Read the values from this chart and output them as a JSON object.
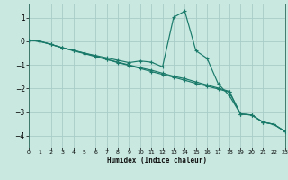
{
  "xlabel": "Humidex (Indice chaleur)",
  "background_color": "#c8e8e0",
  "grid_color": "#a8ccc8",
  "line_color": "#1a7a6a",
  "xlim": [
    0,
    23
  ],
  "ylim": [
    -4.5,
    1.6
  ],
  "yticks": [
    -4,
    -3,
    -2,
    -1,
    0,
    1
  ],
  "xticks": [
    0,
    1,
    2,
    3,
    4,
    5,
    6,
    7,
    8,
    9,
    10,
    11,
    12,
    13,
    14,
    15,
    16,
    17,
    18,
    19,
    20,
    21,
    22,
    23
  ],
  "series1_x": [
    0,
    1,
    2,
    3,
    4,
    5,
    6,
    7,
    8,
    9,
    10,
    11,
    12,
    13,
    14,
    15,
    16,
    17,
    18,
    19,
    20,
    21,
    22,
    23
  ],
  "series1_y": [
    0.05,
    0.0,
    -0.13,
    -0.27,
    -0.38,
    -0.5,
    -0.6,
    -0.7,
    -0.8,
    -0.9,
    -0.83,
    -0.88,
    -1.08,
    1.02,
    1.28,
    -0.4,
    -0.72,
    -1.8,
    -2.3,
    -3.08,
    -3.12,
    -3.42,
    -3.52,
    -3.82
  ],
  "series2_x": [
    0,
    1,
    2,
    3,
    4,
    5,
    6,
    7,
    8,
    9,
    10,
    11,
    12,
    13,
    14,
    15,
    16,
    17,
    18,
    19,
    20,
    21,
    22,
    23
  ],
  "series2_y": [
    0.05,
    0.0,
    -0.13,
    -0.27,
    -0.38,
    -0.5,
    -0.63,
    -0.76,
    -0.88,
    -1.0,
    -1.12,
    -1.22,
    -1.35,
    -1.48,
    -1.58,
    -1.72,
    -1.85,
    -1.98,
    -2.12,
    -3.08,
    -3.12,
    -3.42,
    -3.52,
    -3.82
  ],
  "series3_x": [
    0,
    1,
    2,
    3,
    4,
    5,
    6,
    7,
    8,
    9,
    10,
    11,
    12,
    13,
    14,
    15,
    16,
    17,
    18,
    19,
    20,
    21,
    22,
    23
  ],
  "series3_y": [
    0.05,
    0.0,
    -0.13,
    -0.27,
    -0.4,
    -0.52,
    -0.65,
    -0.77,
    -0.9,
    -1.02,
    -1.15,
    -1.28,
    -1.4,
    -1.52,
    -1.65,
    -1.78,
    -1.9,
    -2.02,
    -2.15,
    -3.08,
    -3.12,
    -3.42,
    -3.52,
    -3.82
  ]
}
